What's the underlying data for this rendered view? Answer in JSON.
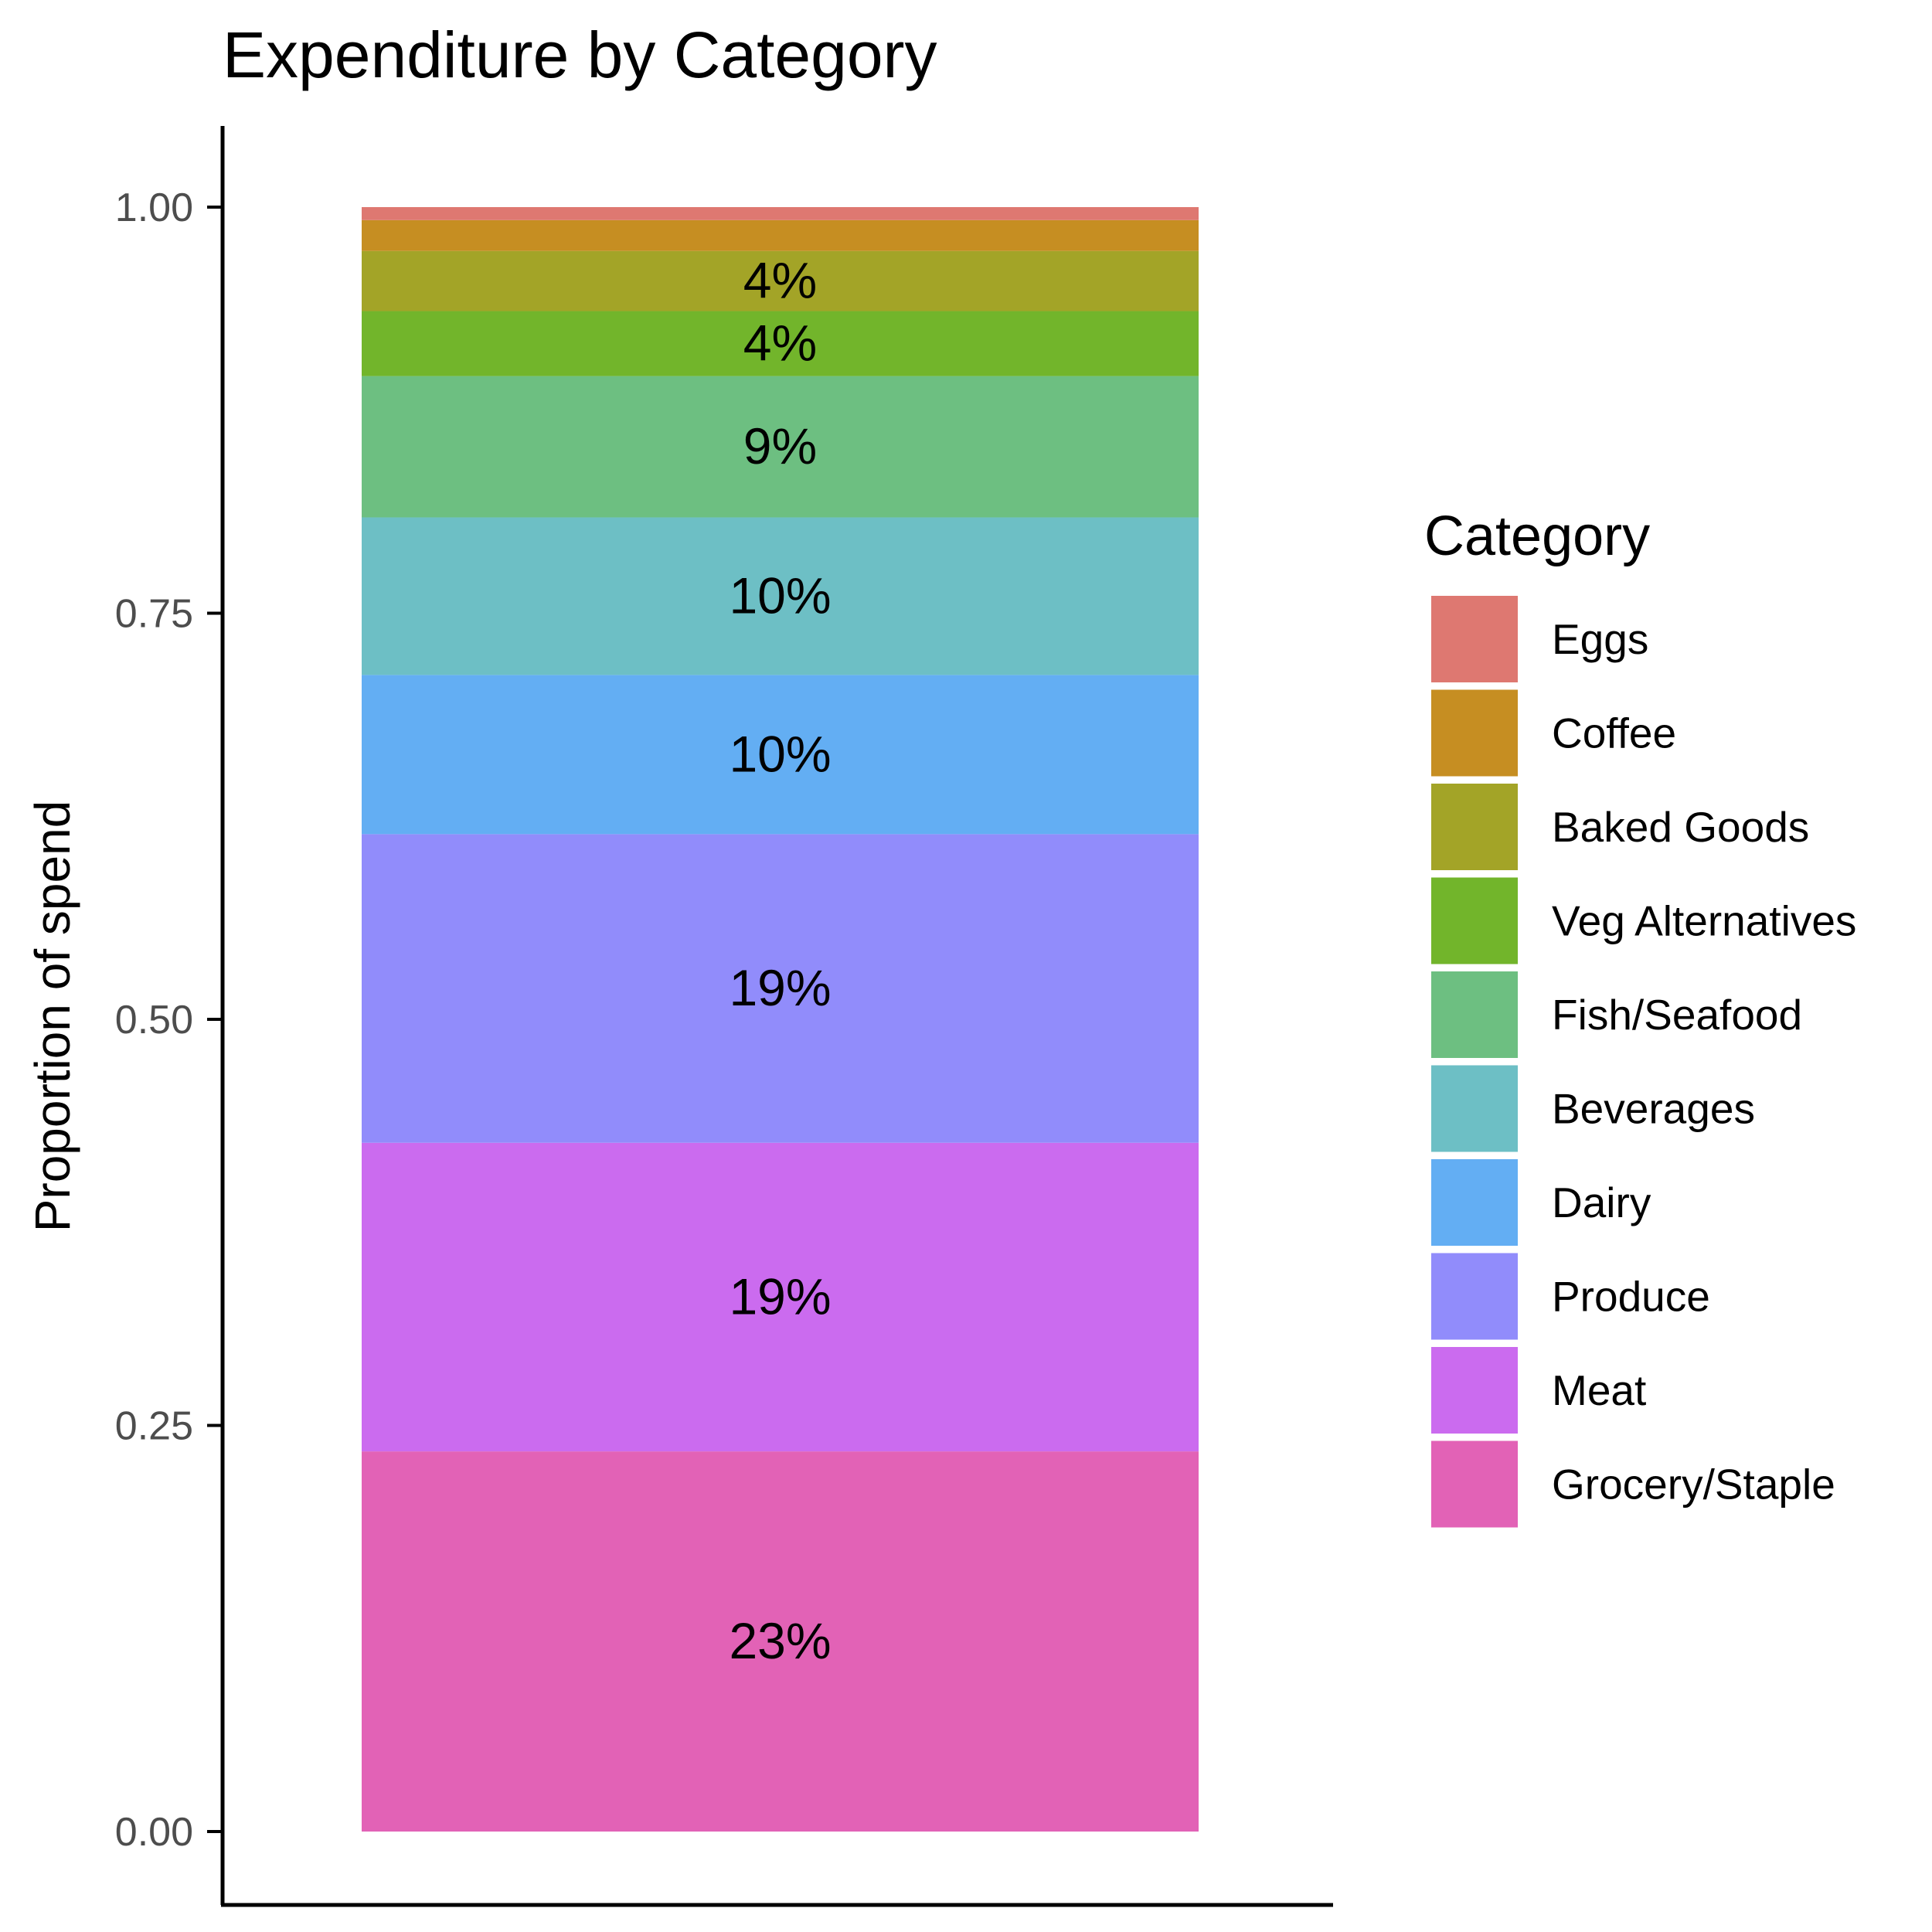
{
  "chart_data": {
    "type": "bar",
    "stacked": true,
    "title": "Expenditure by Category",
    "xlabel": "",
    "ylabel": "Proportion of spend",
    "ylim": [
      0,
      1
    ],
    "yticks": [
      "0.00",
      "0.25",
      "0.50",
      "0.75",
      "1.00"
    ],
    "ytick_values": [
      0,
      0.25,
      0.5,
      0.75,
      1.0
    ],
    "grid": false,
    "legend": {
      "title": "Category",
      "position": "right"
    },
    "series": [
      {
        "name": "Grocery/Staple",
        "value": 0.234,
        "label": "23%",
        "color": "#E262B6"
      },
      {
        "name": "Meat",
        "value": 0.19,
        "label": "19%",
        "color": "#CB6BEF"
      },
      {
        "name": "Produce",
        "value": 0.19,
        "label": "19%",
        "color": "#918CFB"
      },
      {
        "name": "Dairy",
        "value": 0.098,
        "label": "10%",
        "color": "#63AEF3"
      },
      {
        "name": "Beverages",
        "value": 0.097,
        "label": "10%",
        "color": "#6DBFC5"
      },
      {
        "name": "Fish/Seafood",
        "value": 0.087,
        "label": "9%",
        "color": "#6DBF81"
      },
      {
        "name": "Veg Alternatives",
        "value": 0.04,
        "label": "4%",
        "color": "#72B52B"
      },
      {
        "name": "Baked Goods",
        "value": 0.037,
        "label": "4%",
        "color": "#A3A427"
      },
      {
        "name": "Coffee",
        "value": 0.019,
        "label": "",
        "color": "#C68E22"
      },
      {
        "name": "Eggs",
        "value": 0.008,
        "label": "",
        "color": "#DE7871"
      }
    ]
  }
}
